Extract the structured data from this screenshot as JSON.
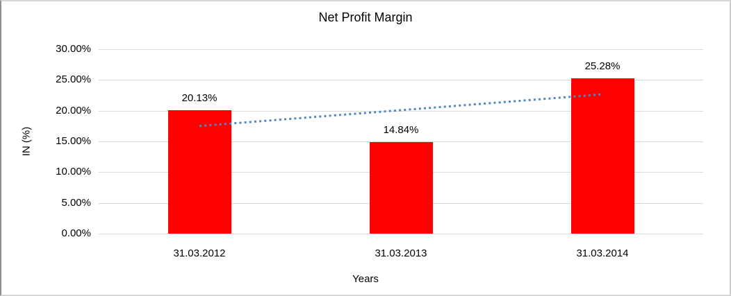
{
  "chart_data": {
    "type": "bar",
    "title": "Net Profit Margin",
    "xlabel": "Years",
    "ylabel": "IN (%)",
    "categories": [
      "31.03.2012",
      "31.03.2013",
      "31.03.2014"
    ],
    "values": [
      20.13,
      14.84,
      25.28
    ],
    "data_labels": [
      "20.13%",
      "14.84%",
      "25.28%"
    ],
    "ylim": [
      0,
      30
    ],
    "ytick_step": 5,
    "ytick_labels": [
      "0.00%",
      "5.00%",
      "10.00%",
      "15.00%",
      "20.00%",
      "25.00%",
      "30.00%"
    ],
    "grid": true,
    "legend": "none",
    "bar_color": "#ff0000",
    "gridline_color": "#d9d9d9",
    "text_color": "#000000",
    "trendline": {
      "type": "linear",
      "style": "dotted",
      "color": "#4f86c6",
      "endpoint_values": [
        17.51,
        22.66
      ]
    }
  }
}
